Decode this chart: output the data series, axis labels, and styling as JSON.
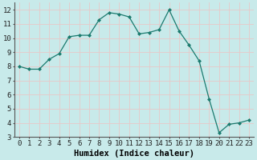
{
  "x": [
    0,
    1,
    2,
    3,
    4,
    5,
    6,
    7,
    8,
    9,
    10,
    11,
    12,
    13,
    14,
    15,
    16,
    17,
    18,
    19,
    20,
    21,
    22,
    23
  ],
  "y": [
    8.0,
    7.8,
    7.8,
    8.5,
    8.9,
    10.1,
    10.2,
    10.2,
    11.3,
    11.8,
    11.7,
    11.5,
    10.3,
    10.4,
    10.6,
    12.0,
    10.5,
    9.5,
    8.4,
    5.7,
    3.3,
    3.9,
    4.0,
    4.2
  ],
  "line_color": "#1a7a6e",
  "marker": "D",
  "marker_size": 2.0,
  "bg_color": "#c8eaea",
  "grid_color": "#e8c8c8",
  "xlabel": "Humidex (Indice chaleur)",
  "ylim": [
    3,
    12.5
  ],
  "xlim": [
    -0.5,
    23.5
  ],
  "yticks": [
    3,
    4,
    5,
    6,
    7,
    8,
    9,
    10,
    11,
    12
  ],
  "xticks": [
    0,
    1,
    2,
    3,
    4,
    5,
    6,
    7,
    8,
    9,
    10,
    11,
    12,
    13,
    14,
    15,
    16,
    17,
    18,
    19,
    20,
    21,
    22,
    23
  ],
  "tick_fontsize": 6.5,
  "label_fontsize": 7.5
}
